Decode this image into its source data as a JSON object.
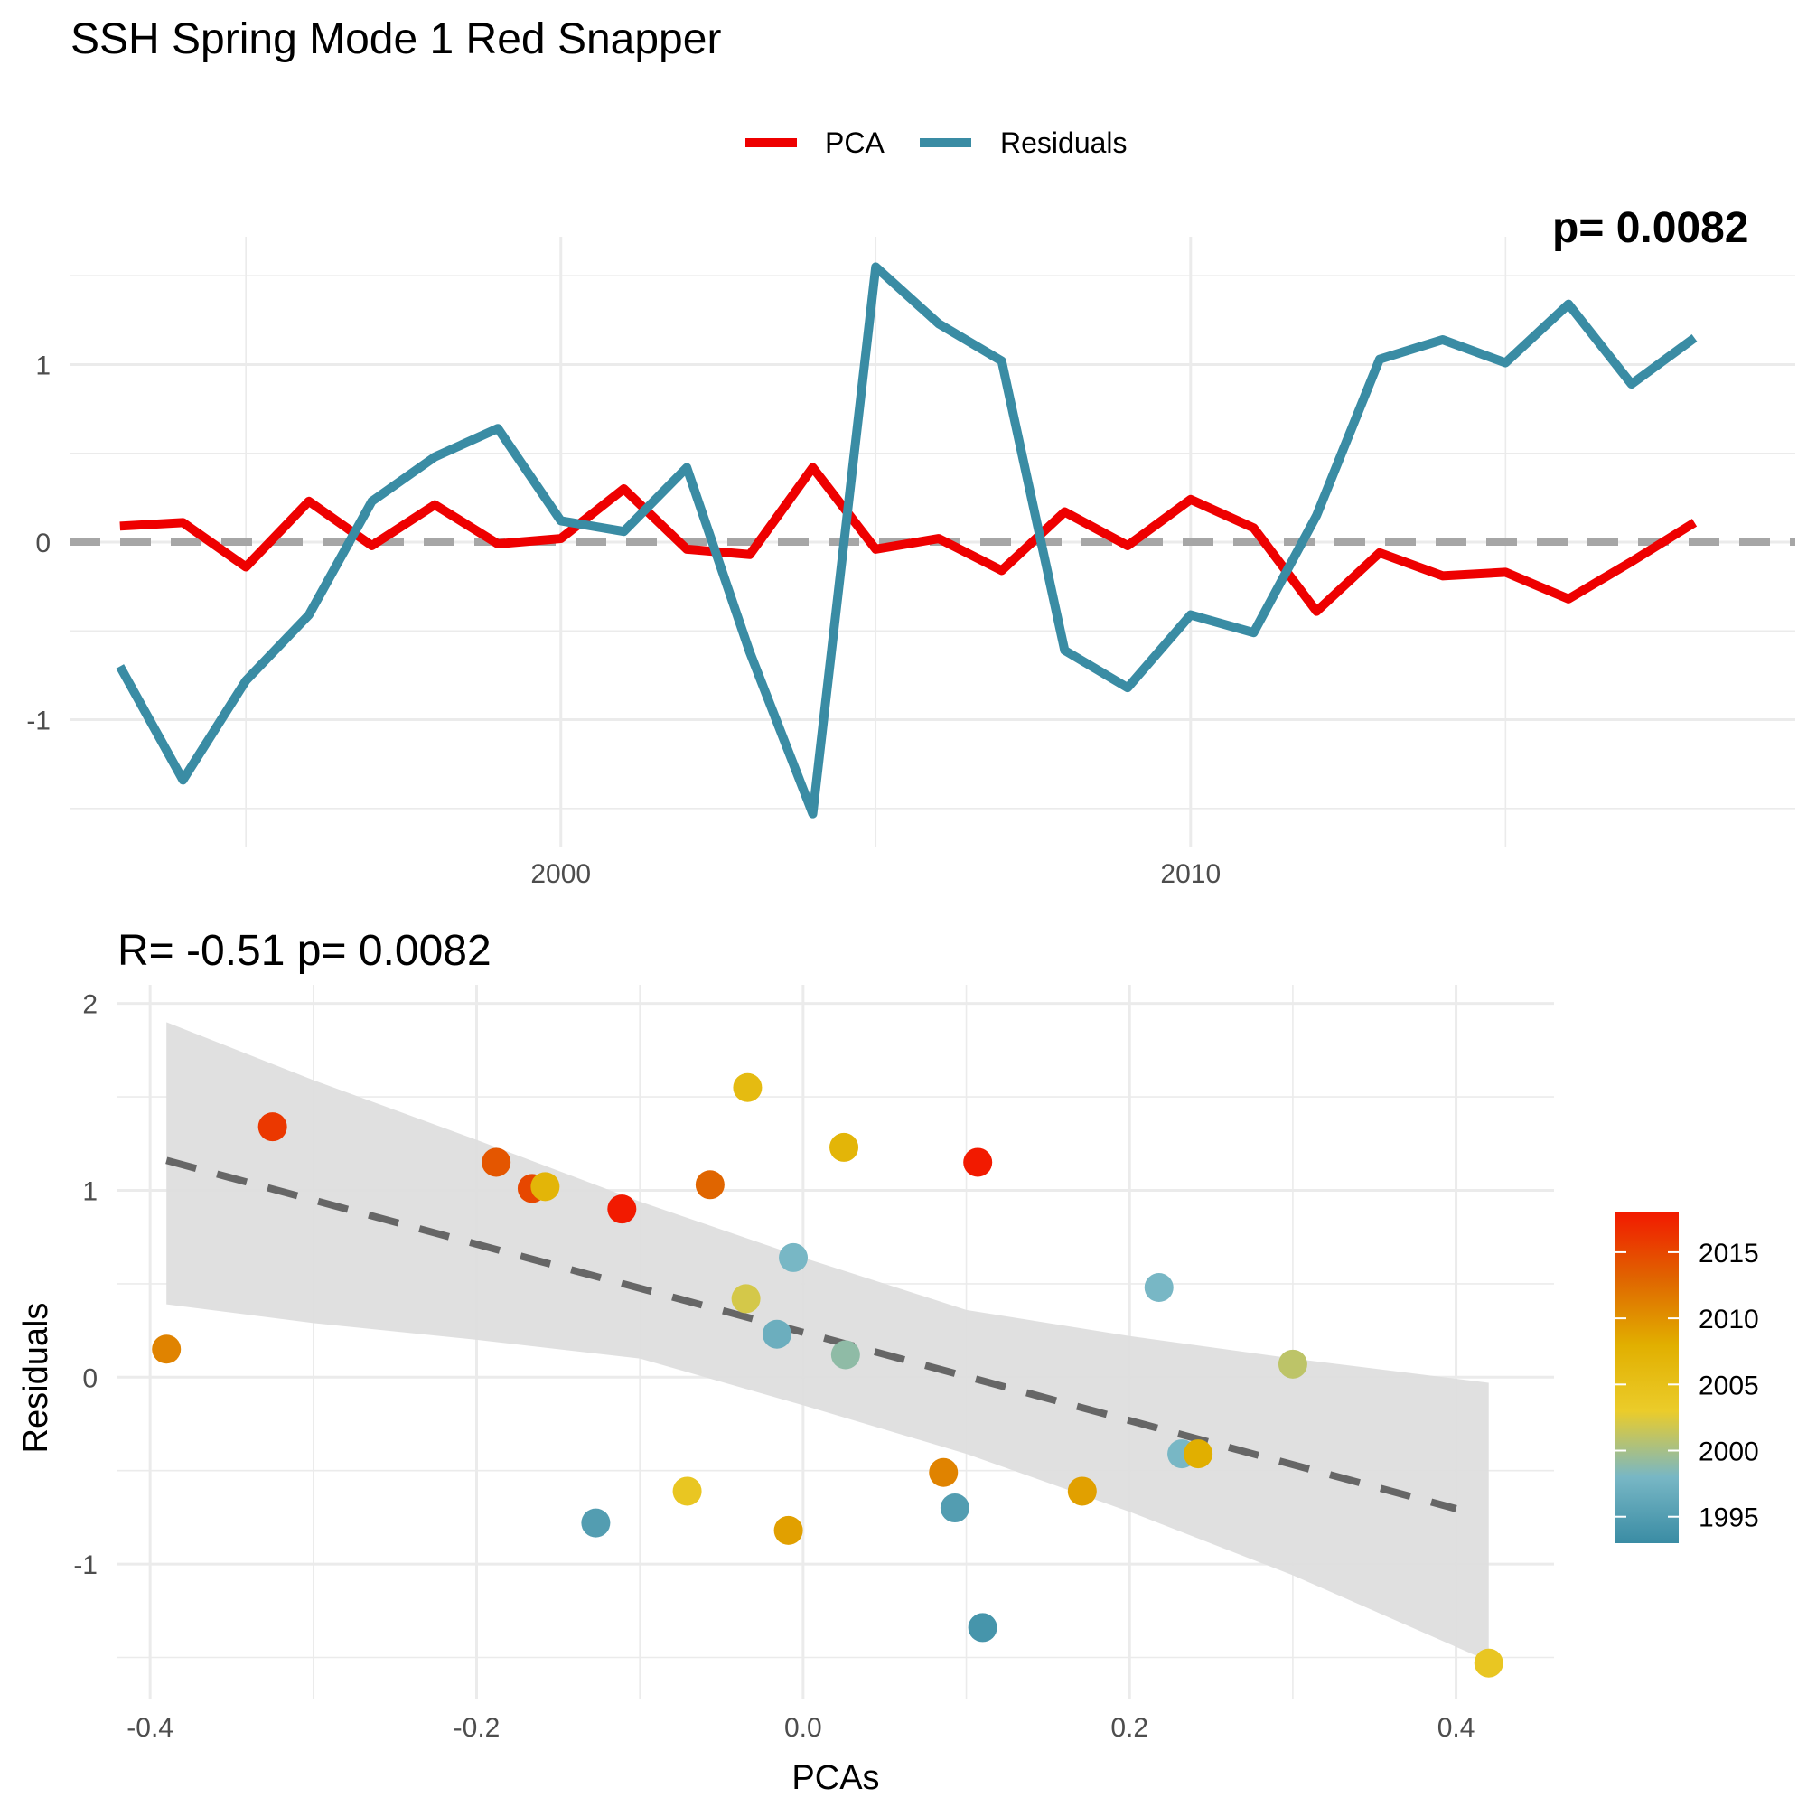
{
  "title": "SSH Spring Mode 1 Red Snapper",
  "colors": {
    "pca": "#ee0000",
    "residuals": "#3a8ca4",
    "zero_line": "#a6a6a6",
    "fit_line": "#666666",
    "ribbon": "#dedede",
    "grid": "#ebebeb"
  },
  "chart_data": [
    {
      "type": "line",
      "title": "",
      "xlabel": "",
      "ylabel": "",
      "xlim": [
        1992.2,
        2019.6
      ],
      "ylim": [
        -1.72,
        1.72
      ],
      "x_ticks": [
        2000,
        2010
      ],
      "y_ticks": [
        -1,
        0,
        1
      ],
      "legend": {
        "position": "top",
        "entries": [
          "PCA",
          "Residuals"
        ]
      },
      "grid": true,
      "reference_line": 0,
      "corner_label": "p= 0.0082",
      "x": [
        1993,
        1994,
        1995,
        1996,
        1997,
        1998,
        1999,
        2000,
        2001,
        2002,
        2003,
        2004,
        2005,
        2006,
        2007,
        2008,
        2009,
        2010,
        2011,
        2012,
        2013,
        2014,
        2015,
        2016,
        2017,
        2018
      ],
      "series": [
        {
          "name": "PCA",
          "values": [
            0.09,
            0.11,
            -0.14,
            0.23,
            -0.02,
            0.21,
            -0.01,
            0.02,
            0.3,
            -0.04,
            -0.07,
            0.42,
            -0.04,
            0.02,
            -0.16,
            0.17,
            -0.02,
            0.24,
            0.08,
            -0.39,
            -0.06,
            -0.19,
            -0.17,
            -0.32,
            -0.11,
            0.11
          ]
        },
        {
          "name": "Residuals",
          "values": [
            -0.7,
            -1.34,
            -0.78,
            -0.41,
            0.23,
            0.48,
            0.64,
            0.12,
            0.06,
            0.42,
            -0.62,
            -1.53,
            1.55,
            1.23,
            1.02,
            -0.61,
            -0.82,
            -0.41,
            -0.51,
            0.15,
            1.03,
            1.14,
            1.01,
            1.34,
            0.89,
            1.15
          ]
        }
      ]
    },
    {
      "type": "scatter",
      "title": "R= -0.51  p= 0.0082",
      "xlabel": "PCAs",
      "ylabel": "Residuals",
      "xlim": [
        -0.42,
        0.46
      ],
      "ylim": [
        -1.72,
        2.1
      ],
      "x_ticks": [
        "-0.4",
        "-0.2",
        "0.0",
        "0.2",
        "0.4"
      ],
      "y_ticks": [
        -1,
        0,
        1,
        2
      ],
      "grid": true,
      "colorbar": {
        "position": "right",
        "ticks": [
          1995,
          2000,
          2005,
          2010,
          2015
        ],
        "range": [
          1993,
          2018
        ],
        "colors": [
          "#3a8ca4",
          "#78b7c5",
          "#ebcc2a",
          "#e1af00",
          "#e06500",
          "#f21a00"
        ]
      },
      "fit": {
        "slope": -2.36,
        "intercept": 0.24,
        "x_range": [
          -0.39,
          0.4
        ]
      },
      "ribbon": {
        "x": [
          -0.39,
          -0.3,
          -0.2,
          -0.1,
          0.0,
          0.1,
          0.2,
          0.3,
          0.42
        ],
        "upper": [
          1.9,
          1.59,
          1.27,
          0.94,
          0.64,
          0.36,
          0.22,
          0.1,
          -0.03
        ],
        "lower": [
          0.39,
          0.29,
          0.2,
          0.1,
          -0.15,
          -0.41,
          -0.72,
          -1.06,
          -1.52
        ]
      },
      "points": [
        {
          "x": -0.39,
          "y": 0.15,
          "year": 2011
        },
        {
          "x": -0.325,
          "y": 1.34,
          "year": 2016
        },
        {
          "x": -0.188,
          "y": 1.15,
          "year": 2014
        },
        {
          "x": -0.166,
          "y": 1.01,
          "year": 2015
        },
        {
          "x": -0.158,
          "y": 1.02,
          "year": 2007
        },
        {
          "x": -0.111,
          "y": 0.9,
          "year": 2018
        },
        {
          "x": -0.057,
          "y": 1.03,
          "year": 2013
        },
        {
          "x": -0.034,
          "y": 1.55,
          "year": 2006
        },
        {
          "x": 0.025,
          "y": 1.23,
          "year": 2007
        },
        {
          "x": 0.107,
          "y": 1.15,
          "year": 2018
        },
        {
          "x": -0.006,
          "y": 0.64,
          "year": 1998
        },
        {
          "x": -0.035,
          "y": 0.42,
          "year": 2002
        },
        {
          "x": -0.016,
          "y": 0.23,
          "year": 1997
        },
        {
          "x": 0.026,
          "y": 0.12,
          "year": 1999
        },
        {
          "x": 0.218,
          "y": 0.48,
          "year": 1998
        },
        {
          "x": 0.3,
          "y": 0.07,
          "year": 2001
        },
        {
          "x": 0.232,
          "y": -0.41,
          "year": 1998
        },
        {
          "x": 0.242,
          "y": -0.41,
          "year": 2008
        },
        {
          "x": 0.086,
          "y": -0.51,
          "year": 2011
        },
        {
          "x": 0.171,
          "y": -0.61,
          "year": 2009
        },
        {
          "x": -0.071,
          "y": -0.61,
          "year": 2004
        },
        {
          "x": -0.127,
          "y": -0.78,
          "year": 1995
        },
        {
          "x": -0.009,
          "y": -0.82,
          "year": 2009
        },
        {
          "x": 0.093,
          "y": -0.7,
          "year": 1995
        },
        {
          "x": 0.11,
          "y": -1.34,
          "year": 1994
        },
        {
          "x": 0.42,
          "y": -1.53,
          "year": 2004
        }
      ]
    }
  ]
}
